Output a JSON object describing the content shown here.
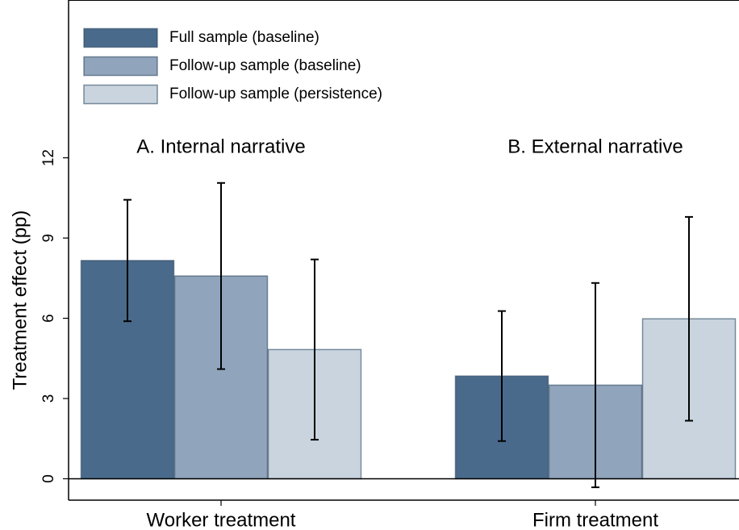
{
  "chart_data": {
    "type": "bar",
    "y_label": "Treatment effect (pp)",
    "categories": [
      "Worker treatment",
      "Firm treatment"
    ],
    "annotations": [
      "A. Internal narrative",
      "B. External narrative"
    ],
    "series": [
      {
        "name": "Full sample (baseline)",
        "color": "#496a8b",
        "values": [
          8.16,
          3.84
        ],
        "errors": [
          2.27,
          2.43
        ]
      },
      {
        "name": "Follow-up sample (baseline)",
        "color": "#90a4bb",
        "values": [
          7.58,
          3.5
        ],
        "errors": [
          3.48,
          3.82
        ]
      },
      {
        "name": "Follow-up sample (persistence)",
        "color": "#c9d4de",
        "values": [
          4.83,
          5.98
        ],
        "errors": [
          3.37,
          3.81
        ]
      }
    ],
    "ylim": [
      -0.8,
      17.9
    ],
    "yticks": [
      0,
      3,
      6,
      9,
      12
    ],
    "legend": "top-left"
  }
}
